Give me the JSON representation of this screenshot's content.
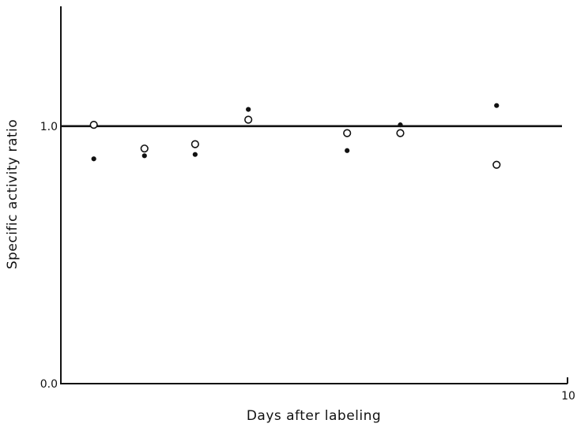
{
  "chart_data": {
    "type": "scatter",
    "title": "",
    "xlabel": "Days after labeling",
    "ylabel": "Specific activity ratio",
    "xlim": [
      0,
      10
    ],
    "ylim": [
      0.0,
      1.45
    ],
    "x_ticks": [
      {
        "value": 10,
        "label": "10"
      }
    ],
    "y_ticks": [
      {
        "value": 0.0,
        "label": "0.0"
      },
      {
        "value": 1.0,
        "label": "1.0"
      }
    ],
    "reference_line": {
      "y": 1.0
    },
    "grid": false,
    "legend": "none",
    "series": [
      {
        "marker": "open-circle",
        "points": [
          {
            "x": 0.65,
            "y": 1.005
          },
          {
            "x": 1.65,
            "y": 0.913
          },
          {
            "x": 2.65,
            "y": 0.93
          },
          {
            "x": 3.7,
            "y": 1.025
          },
          {
            "x": 5.65,
            "y": 0.973
          },
          {
            "x": 6.7,
            "y": 0.973
          },
          {
            "x": 8.6,
            "y": 0.85
          }
        ]
      },
      {
        "marker": "filled-circle",
        "points": [
          {
            "x": 0.65,
            "y": 0.873
          },
          {
            "x": 1.65,
            "y": 0.885
          },
          {
            "x": 2.65,
            "y": 0.89
          },
          {
            "x": 3.7,
            "y": 1.065
          },
          {
            "x": 5.65,
            "y": 0.905
          },
          {
            "x": 6.7,
            "y": 1.005
          },
          {
            "x": 8.6,
            "y": 1.08
          }
        ]
      }
    ]
  }
}
